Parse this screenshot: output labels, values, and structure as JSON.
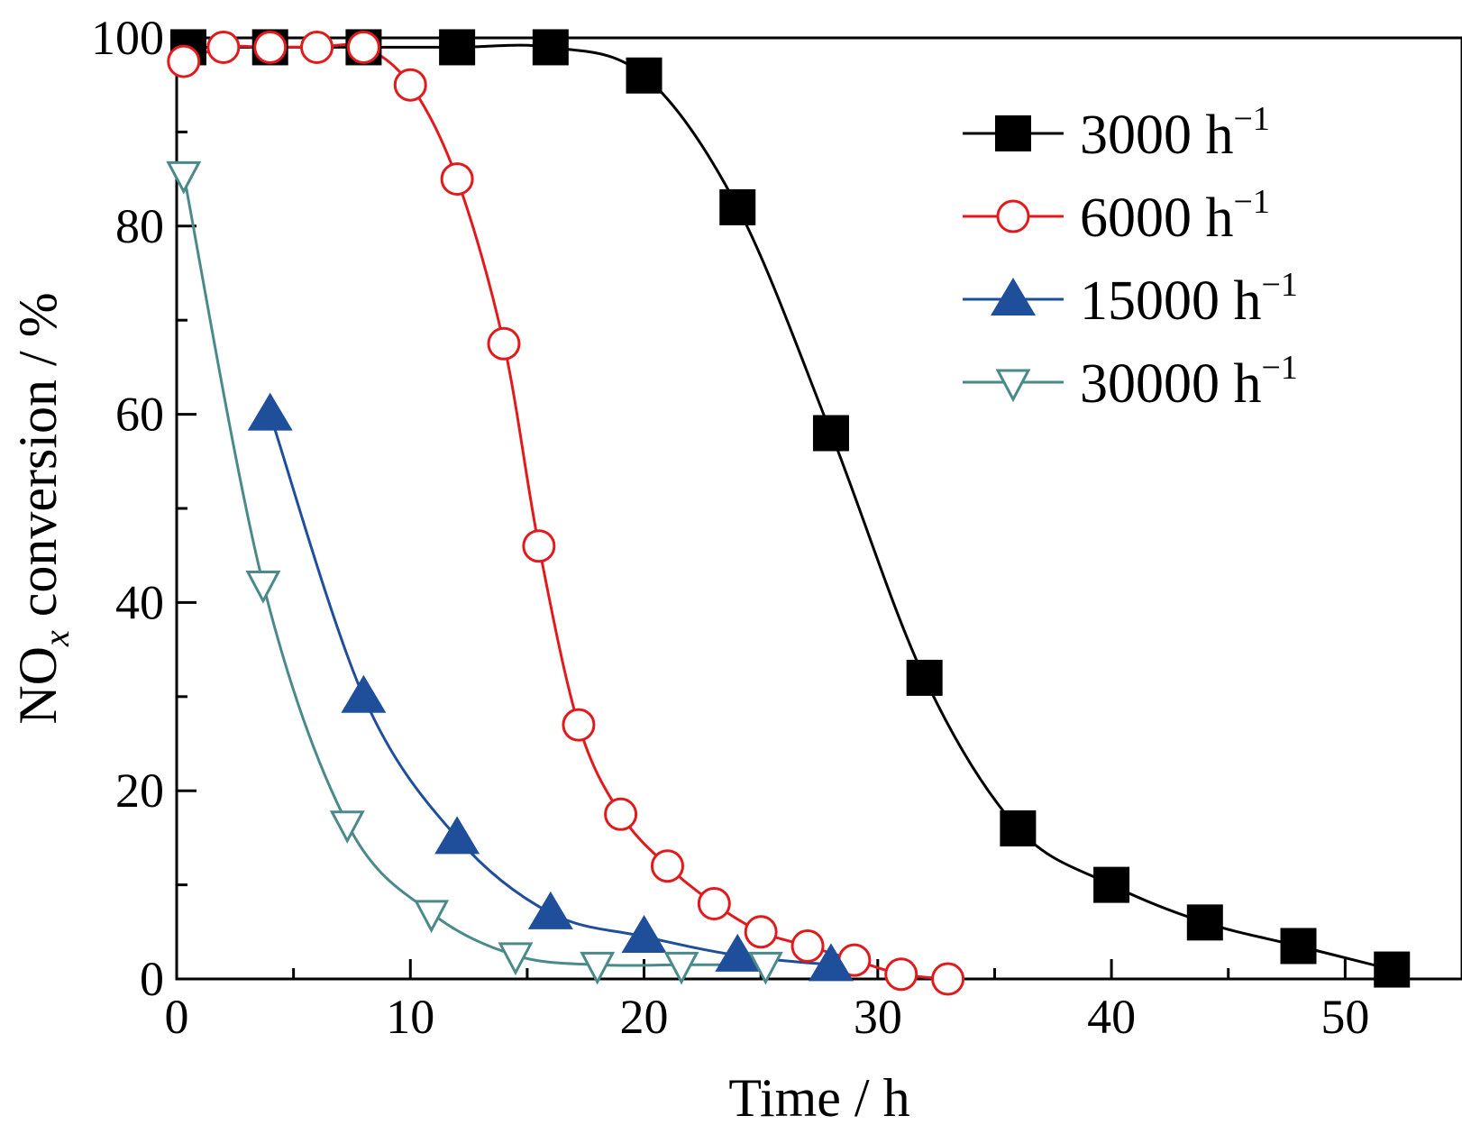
{
  "chart_data": {
    "type": "line",
    "xlabel": "Time / h",
    "ylabel": {
      "prefix": "NO",
      "subscript": "x",
      "suffix": " conversion / %"
    },
    "xlim": [
      0,
      55
    ],
    "ylim": [
      0,
      100
    ],
    "x_ticks": [
      0,
      10,
      20,
      30,
      40,
      50
    ],
    "y_ticks": [
      0,
      20,
      40,
      60,
      80,
      100
    ],
    "grid": false,
    "legend_position": "top-right",
    "series": [
      {
        "name": "3000 h",
        "name_sup": "−1",
        "color": "#000000",
        "marker": "filled-square",
        "x": [
          0.5,
          4,
          8,
          12,
          16,
          20,
          24,
          28,
          32,
          36,
          40,
          44,
          48,
          52
        ],
        "y": [
          99,
          99,
          99,
          99,
          99,
          96,
          82,
          58,
          32,
          16,
          10,
          6,
          3.5,
          1
        ]
      },
      {
        "name": "6000 h",
        "name_sup": "−1",
        "color": "#e31a1c",
        "marker": "open-circle",
        "x": [
          0.3,
          2,
          4,
          6,
          8,
          10,
          12,
          14,
          15.5,
          17.2,
          19,
          21,
          23,
          25,
          27,
          29,
          31,
          33
        ],
        "y": [
          97.5,
          99,
          99,
          99,
          99,
          95,
          85,
          67.5,
          46,
          27,
          17.5,
          12,
          8,
          5,
          3.5,
          2,
          0.5,
          0
        ]
      },
      {
        "name": "15000 h",
        "name_sup": "−1",
        "color": "#1f4e9b",
        "marker": "filled-triangle-up",
        "x": [
          4,
          8,
          12,
          16,
          20,
          24,
          28
        ],
        "y": [
          60,
          30,
          15,
          7,
          4.5,
          2.5,
          1.5
        ]
      },
      {
        "name": "30000 h",
        "name_sup": "−1",
        "color": "#4a8a8a",
        "marker": "open-triangle-down",
        "x": [
          0.3,
          3.7,
          7.3,
          10.9,
          14.5,
          18,
          21.6,
          25.2
        ],
        "y": [
          85.5,
          42,
          16.5,
          7,
          2.5,
          1.5,
          1.5,
          1.5
        ]
      }
    ]
  }
}
